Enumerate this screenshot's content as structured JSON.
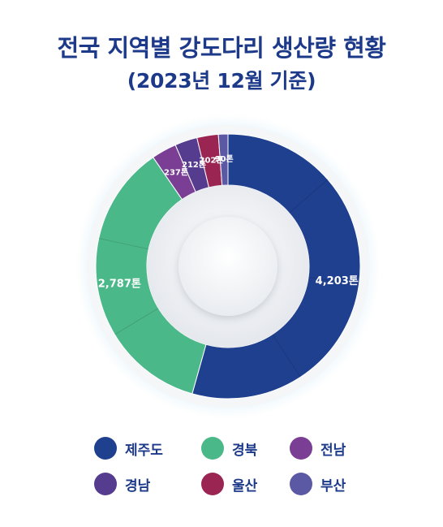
{
  "title": "전국 지역별 강도다리 생산량 현황",
  "subtitle": "(2023년 12월 기준)",
  "chart_data": {
    "type": "pie",
    "variant": "donut",
    "unit": "톤",
    "slices": [
      {
        "name": "제주도",
        "value": 4203,
        "label": "4,203톤",
        "color": "#1f3f8f"
      },
      {
        "name": "경북",
        "value": 2787,
        "label": "2,787톤",
        "color": "#4bb889"
      },
      {
        "name": "전남",
        "value": 237,
        "label": "237톤",
        "color": "#7a3f94"
      },
      {
        "name": "경남",
        "value": 212,
        "label": "212톤",
        "color": "#553c8e"
      },
      {
        "name": "울산",
        "value": 202,
        "label": "202톤",
        "color": "#9a2552"
      },
      {
        "name": "부산",
        "value": 90,
        "label": "90톤",
        "color": "#5b58a4"
      }
    ],
    "legend_position": "bottom"
  },
  "legend": [
    {
      "label": "제주도",
      "color": "#1f3f8f"
    },
    {
      "label": "경북",
      "color": "#4bb889"
    },
    {
      "label": "전남",
      "color": "#7a3f94"
    },
    {
      "label": "경남",
      "color": "#553c8e"
    },
    {
      "label": "울산",
      "color": "#9a2552"
    },
    {
      "label": "부산",
      "color": "#5b58a4"
    }
  ]
}
